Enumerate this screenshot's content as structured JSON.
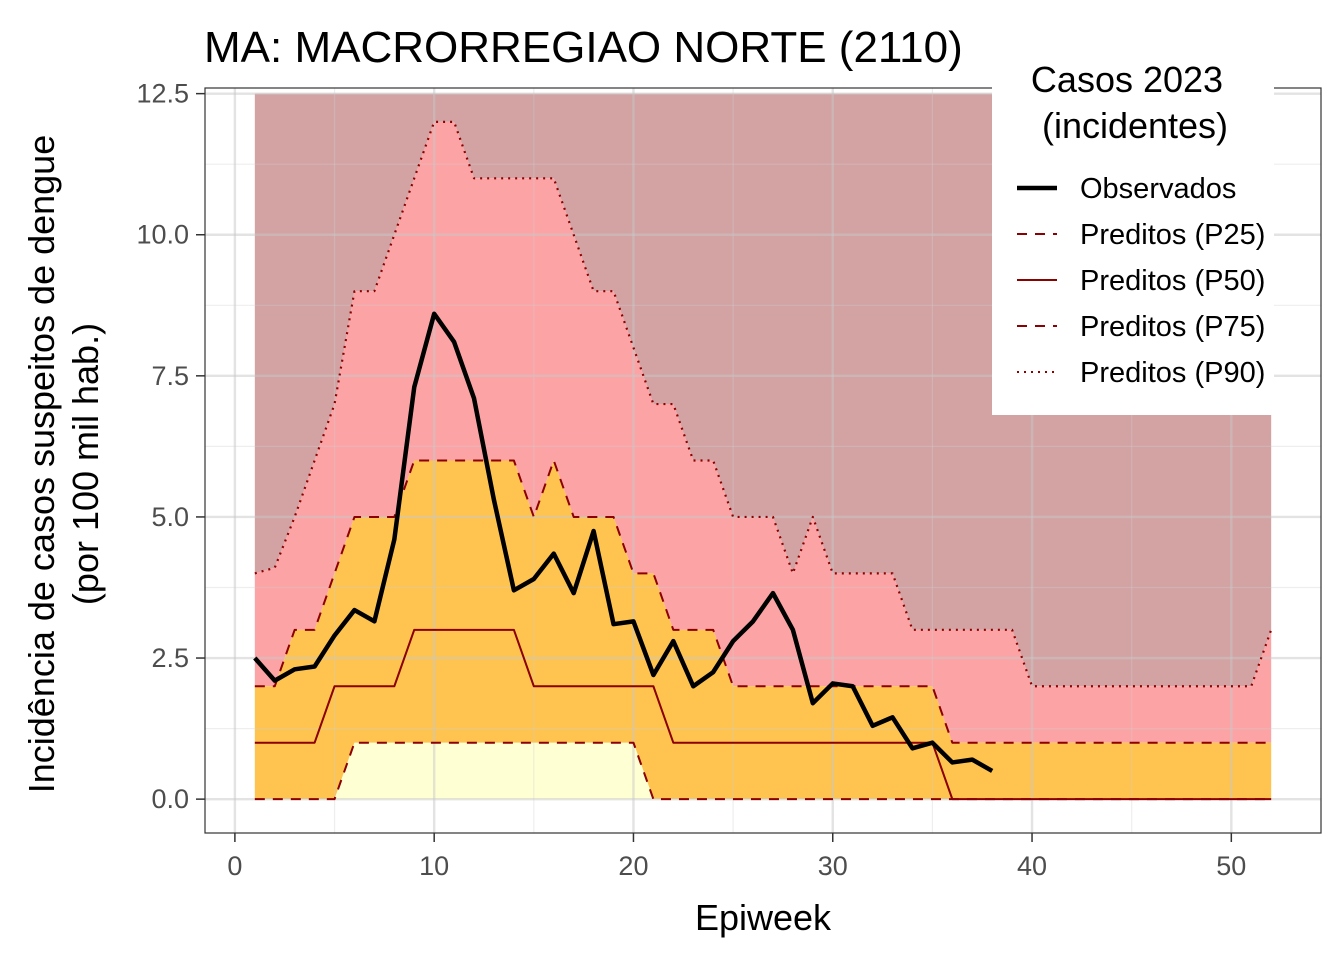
{
  "chart_data": {
    "type": "area",
    "title": "MA: MACRORREGIAO NORTE (2110)",
    "xlabel": "Epiweek",
    "ylabel_line1": "Incidência de casos suspeitos de dengue",
    "ylabel_line2": "(por 100 mil hab.)",
    "xlim": [
      -1.5,
      54.5
    ],
    "ylim": [
      -0.6,
      12.6
    ],
    "x_ticks": [
      0,
      10,
      20,
      30,
      40,
      50
    ],
    "x_tick_labels": [
      "0",
      "10",
      "20",
      "30",
      "40",
      "50"
    ],
    "y_ticks": [
      0,
      2.5,
      5,
      7.5,
      10,
      12.5
    ],
    "y_tick_labels": [
      "0.0",
      "2.5",
      "5.0",
      "7.5",
      "10.0",
      "12.5"
    ],
    "grid": true,
    "legend": {
      "title_line1": "Casos 2023",
      "title_line2": "(incidentes)",
      "position": "top-right",
      "entries": [
        {
          "label": "Observados",
          "style": "solid-thick",
          "color": "#000000"
        },
        {
          "label": "Preditos (P25)",
          "style": "dashed",
          "color": "#8b0000"
        },
        {
          "label": "Preditos (P50)",
          "style": "solid",
          "color": "#8b0000"
        },
        {
          "label": "Preditos (P75)",
          "style": "dashed",
          "color": "#8b0000"
        },
        {
          "label": "Preditos (P90)",
          "style": "dotted",
          "color": "#8b0000"
        }
      ]
    },
    "band_colors": {
      "below_p25": "#ffffd4",
      "p25_p75": "#fec44f",
      "p75_p90": "#fca4a5",
      "above_p90": "#d3a3a4"
    },
    "band_top": 12.5,
    "x": [
      1,
      2,
      3,
      4,
      5,
      6,
      7,
      8,
      9,
      10,
      11,
      12,
      13,
      14,
      15,
      16,
      17,
      18,
      19,
      20,
      21,
      22,
      23,
      24,
      25,
      26,
      27,
      28,
      29,
      30,
      31,
      32,
      33,
      34,
      35,
      36,
      37,
      38,
      39,
      40,
      41,
      42,
      43,
      44,
      45,
      46,
      47,
      48,
      49,
      50,
      51,
      52
    ],
    "series": [
      {
        "name": "Preditos (P25)",
        "values": [
          0,
          0,
          0,
          0,
          0,
          1,
          1,
          1,
          1,
          1,
          1,
          1,
          1,
          1,
          1,
          1,
          1,
          1,
          1,
          1,
          0,
          0,
          0,
          0,
          0,
          0,
          0,
          0,
          0,
          0,
          0,
          0,
          0,
          0,
          0,
          0,
          0,
          0,
          0,
          0,
          0,
          0,
          0,
          0,
          0,
          0,
          0,
          0,
          0,
          0,
          0,
          0
        ]
      },
      {
        "name": "Preditos (P50)",
        "values": [
          1,
          1,
          1,
          1,
          2,
          2,
          2,
          2,
          3,
          3,
          3,
          3,
          3,
          3,
          2,
          2,
          2,
          2,
          2,
          2,
          2,
          1,
          1,
          1,
          1,
          1,
          1,
          1,
          1,
          1,
          1,
          1,
          1,
          1,
          1,
          0,
          0,
          0,
          0,
          0,
          0,
          0,
          0,
          0,
          0,
          0,
          0,
          0,
          0,
          0,
          0,
          0
        ]
      },
      {
        "name": "Preditos (P75)",
        "values": [
          2,
          2,
          3,
          3,
          4,
          5,
          5,
          5,
          6,
          6,
          6,
          6,
          6,
          6,
          5,
          6,
          5,
          5,
          5,
          4,
          4,
          3,
          3,
          3,
          2,
          2,
          2,
          2,
          2,
          2,
          2,
          2,
          2,
          2,
          2,
          1,
          1,
          1,
          1,
          1,
          1,
          1,
          1,
          1,
          1,
          1,
          1,
          1,
          1,
          1,
          1,
          1
        ]
      },
      {
        "name": "Preditos (P90)",
        "values": [
          4,
          4.1,
          5,
          6,
          7,
          9,
          9,
          10,
          11,
          12,
          12,
          11,
          11,
          11,
          11,
          11,
          10,
          9,
          9,
          8,
          7,
          7,
          6,
          6,
          5,
          5,
          5,
          4,
          5,
          4,
          4,
          4,
          4,
          3,
          3,
          3,
          3,
          3,
          3,
          2,
          2,
          2,
          2,
          2,
          2,
          2,
          2,
          2,
          2,
          2,
          2,
          3
        ]
      },
      {
        "name": "Observados",
        "x": [
          1,
          2,
          3,
          4,
          5,
          6,
          7,
          8,
          9,
          10,
          11,
          12,
          13,
          14,
          15,
          16,
          17,
          18,
          19,
          20,
          21,
          22,
          23,
          24,
          25,
          26,
          27,
          28,
          29,
          30,
          31,
          32,
          33,
          34,
          35,
          36,
          37,
          38
        ],
        "values": [
          2.5,
          2.1,
          2.3,
          2.35,
          2.9,
          3.35,
          3.15,
          4.6,
          7.3,
          8.6,
          8.1,
          7.1,
          5.3,
          3.7,
          3.9,
          4.35,
          3.65,
          4.75,
          3.1,
          3.15,
          2.2,
          2.8,
          2.0,
          2.25,
          2.8,
          3.15,
          3.65,
          3.0,
          1.7,
          2.05,
          2.0,
          1.3,
          1.45,
          0.9,
          1.0,
          0.65,
          0.7,
          0.5
        ]
      }
    ]
  }
}
